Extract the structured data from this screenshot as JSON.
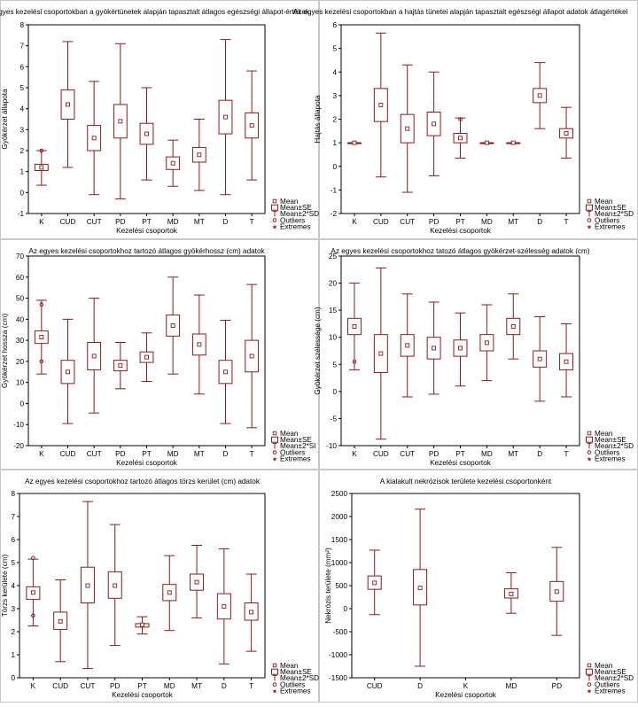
{
  "colors": {
    "box": "#8b1a1a",
    "axis": "#000000",
    "background": "#ffffff",
    "frame": "#c8c8c8"
  },
  "chart_data": [
    {
      "type": "boxplot",
      "title": "Az egyes kezelési csoportokban a gyökértünetek alapján tapasztalt átlagos egészségi állapot-értékek",
      "xlabel": "Kezelési csoportok",
      "ylabel": "Gyökérzet állapota",
      "ylim": [
        -1,
        8
      ],
      "yticks": [
        -1,
        0,
        1,
        2,
        3,
        4,
        5,
        6,
        7,
        8
      ],
      "categories": [
        "K",
        "CUD",
        "CUT",
        "PD",
        "PT",
        "MD",
        "MT",
        "D",
        "T"
      ],
      "mean": [
        1.2,
        4.2,
        2.6,
        3.4,
        2.8,
        1.4,
        1.8,
        3.6,
        3.2
      ],
      "se_low": [
        1.05,
        3.5,
        2.0,
        2.6,
        2.3,
        1.1,
        1.45,
        2.8,
        2.6
      ],
      "se_high": [
        1.35,
        4.9,
        3.2,
        4.2,
        3.3,
        1.7,
        2.15,
        4.4,
        3.8
      ],
      "sd2_low": [
        0.35,
        1.2,
        -0.1,
        -0.3,
        0.6,
        0.3,
        0.1,
        -0.1,
        0.6
      ],
      "sd2_high": [
        2.0,
        7.2,
        5.3,
        7.1,
        5.0,
        2.5,
        3.5,
        7.3,
        5.8
      ],
      "outliers": [
        [
          2.0
        ],
        [],
        [],
        [],
        [],
        [],
        [],
        [],
        []
      ],
      "legend": [
        "Mean",
        "Mean±SE",
        "Mean±2*SD",
        "Outliers",
        "Extremes"
      ]
    },
    {
      "type": "boxplot",
      "title": "Az egyes kezelési csoportokban a hajtás tünetei alapján tapasztalt egészségi állapot adatok átlagértékei",
      "xlabel": "Kezelési csoportok",
      "ylabel": "Hajtás állapota",
      "ylim": [
        -2,
        6
      ],
      "yticks": [
        -2,
        -1,
        0,
        1,
        2,
        3,
        4,
        5,
        6
      ],
      "categories": [
        "K",
        "CUD",
        "CUT",
        "PD",
        "PT",
        "MD",
        "MT",
        "D",
        "T"
      ],
      "mean": [
        1.0,
        2.6,
        1.6,
        1.8,
        1.2,
        1.0,
        1.0,
        3.0,
        1.4
      ],
      "se_low": [
        1.0,
        1.9,
        1.0,
        1.3,
        1.0,
        1.0,
        1.0,
        2.7,
        1.2
      ],
      "se_high": [
        1.0,
        3.3,
        2.2,
        2.3,
        1.4,
        1.0,
        1.0,
        3.3,
        1.6
      ],
      "sd2_low": [
        1.0,
        -0.45,
        -1.1,
        -0.4,
        0.35,
        1.0,
        1.0,
        1.6,
        0.35
      ],
      "sd2_high": [
        1.0,
        5.65,
        4.3,
        4.0,
        2.05,
        1.0,
        1.0,
        4.4,
        2.5
      ],
      "outliers": [
        [],
        [],
        [],
        [],
        [
          2.0
        ],
        [],
        [],
        [],
        []
      ],
      "legend": [
        "Mean",
        "Mean±SE",
        "Mean±2*SD",
        "Outliers",
        "Extremes"
      ]
    },
    {
      "type": "boxplot",
      "title": "Az egyes kezelési csoportokhoz tartozó átlagos gyökérhossz (cm) adatok",
      "xlabel": "Kezelési csoportok",
      "ylabel": "Gyökérzet hossza (cm)",
      "ylim": [
        -20,
        70
      ],
      "yticks": [
        -20,
        -10,
        0,
        10,
        20,
        30,
        40,
        50,
        60,
        70
      ],
      "categories": [
        "K",
        "CUD",
        "CUT",
        "PD",
        "PT",
        "MD",
        "MT",
        "D",
        "T"
      ],
      "mean": [
        31.5,
        15.0,
        22.5,
        18.0,
        22.0,
        37.0,
        28.0,
        15.0,
        22.5
      ],
      "se_low": [
        28.5,
        9.5,
        16.0,
        15.5,
        19.5,
        32.0,
        23.0,
        9.5,
        15.0
      ],
      "se_high": [
        34.5,
        20.5,
        29.0,
        20.5,
        24.5,
        42.0,
        33.0,
        20.5,
        30.0
      ],
      "sd2_low": [
        14.0,
        -9.5,
        -4.5,
        7.0,
        10.5,
        14.0,
        4.5,
        -9.5,
        -11.5
      ],
      "sd2_high": [
        49.0,
        40.0,
        50.0,
        29.0,
        33.5,
        60.0,
        51.5,
        39.5,
        56.5
      ],
      "outliers": [
        [
          47.0,
          20.0
        ],
        [],
        [],
        [],
        [],
        [],
        [],
        [],
        []
      ],
      "legend": [
        "Mean",
        "Mean±SE",
        "Mean±2*SI",
        "Outliers",
        "Extremes"
      ]
    },
    {
      "type": "boxplot",
      "title": "Az egyes kezelési csoportokhoz tatozó átlagos gyökérzet-szélesség adatok (cm)",
      "xlabel": "Kezelési csoportok",
      "ylabel": "Gyökérzet szélessége (cm)",
      "ylim": [
        -10,
        25
      ],
      "yticks": [
        -10,
        -5,
        0,
        5,
        10,
        15,
        20,
        25
      ],
      "categories": [
        "K",
        "CUD",
        "CUT",
        "PD",
        "PT",
        "MD",
        "MT",
        "D",
        "T"
      ],
      "mean": [
        12.0,
        7.0,
        8.5,
        8.0,
        8.0,
        9.0,
        12.0,
        6.0,
        5.5
      ],
      "se_low": [
        10.5,
        3.5,
        6.5,
        6.0,
        6.5,
        7.5,
        10.5,
        4.5,
        4.0
      ],
      "se_high": [
        13.5,
        10.5,
        10.5,
        10.0,
        9.5,
        10.5,
        13.5,
        7.5,
        7.0
      ],
      "sd2_low": [
        4.0,
        -8.8,
        -1.0,
        -0.5,
        1.0,
        2.0,
        6.0,
        -1.8,
        -1.0
      ],
      "sd2_high": [
        20.0,
        22.8,
        18.0,
        16.5,
        14.5,
        16.0,
        18.0,
        13.8,
        12.5
      ],
      "outliers": [
        [
          5.5
        ],
        [],
        [],
        [],
        [],
        [],
        [],
        [],
        []
      ],
      "legend": [
        "Mean",
        "Mean±SE",
        "Mean±2*SD",
        "Outliers",
        "Extremes"
      ]
    },
    {
      "type": "boxplot",
      "title": "Az egyes kezelési csoportokhoz tartozó átlagos törzs kerület (cm) adatok",
      "xlabel": "Kezelési csoportok",
      "ylabel": "Törzs kerülete (cm)",
      "ylim": [
        0,
        8
      ],
      "yticks": [
        0,
        1,
        2,
        3,
        4,
        5,
        6,
        7,
        8
      ],
      "categories": [
        "K",
        "CUD",
        "CUT",
        "PD",
        "PT",
        "MD",
        "MT",
        "D",
        "T"
      ],
      "mean": [
        3.7,
        2.45,
        4.0,
        4.0,
        2.3,
        3.7,
        4.15,
        3.1,
        2.85
      ],
      "se_low": [
        3.4,
        2.1,
        3.25,
        3.45,
        2.2,
        3.35,
        3.8,
        2.55,
        2.5
      ],
      "se_high": [
        3.95,
        2.85,
        4.8,
        4.6,
        2.35,
        4.05,
        4.5,
        3.65,
        3.25
      ],
      "sd2_low": [
        2.25,
        0.7,
        0.4,
        1.4,
        1.9,
        2.05,
        2.6,
        0.6,
        1.15
      ],
      "sd2_high": [
        5.15,
        4.25,
        7.65,
        6.65,
        2.65,
        5.3,
        5.75,
        5.6,
        4.5
      ],
      "outliers": [
        [
          5.2,
          2.7
        ],
        [],
        [],
        [],
        [],
        [],
        [],
        [],
        []
      ],
      "legend": [
        "Mean",
        "Mean±SE",
        "Mean±2*SD",
        "Outliers",
        "Extremes"
      ]
    },
    {
      "type": "boxplot",
      "title": "A kialakult nekrózisok területe kezelési csoportonként",
      "xlabel": "Kezelési csoportok",
      "ylabel": "Nekrózis területe (mm²)",
      "ylim": [
        -1500,
        2500
      ],
      "yticks": [
        -1500,
        -1000,
        -500,
        0,
        500,
        1000,
        1500,
        2000,
        2500
      ],
      "categories": [
        "CUD",
        "D",
        "K",
        "MD",
        "PD"
      ],
      "mean": [
        560,
        450,
        null,
        320,
        370
      ],
      "se_low": [
        420,
        80,
        null,
        230,
        160
      ],
      "se_high": [
        710,
        850,
        null,
        430,
        590
      ],
      "sd2_low": [
        -130,
        -1250,
        null,
        -100,
        -580
      ],
      "sd2_high": [
        1270,
        2160,
        null,
        780,
        1330
      ],
      "outliers": [
        [],
        [],
        [],
        [],
        []
      ],
      "legend": [
        "Mean",
        "Mean±SE",
        "Mean±2*SD",
        "Outliers",
        "Extremes"
      ]
    }
  ]
}
